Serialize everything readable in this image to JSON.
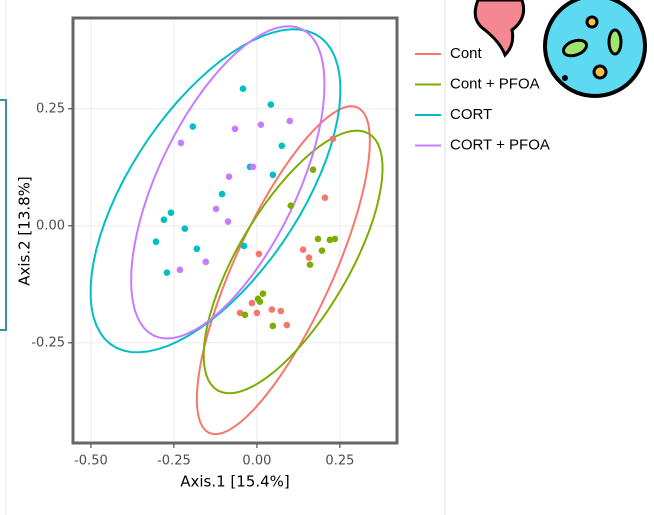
{
  "chart_data": {
    "type": "scatter",
    "x_label": "Axis.1   [15.4%]",
    "y_label": "Axis.2   [13.8%]",
    "xlim": [
      -0.554,
      0.422
    ],
    "ylim": [
      -0.464,
      0.444
    ],
    "xticks": [
      {
        "value": -0.5,
        "label": "-0.50"
      },
      -0.25,
      {
        "value": 0,
        "label": "0.00"
      },
      0.25
    ],
    "yticks": [
      -0.25,
      {
        "value": 0,
        "label": "0.00"
      },
      0.25
    ],
    "grid": true,
    "ellipses": true,
    "legend": "outside-right",
    "series": [
      {
        "name": "Cont",
        "color": "#F8766D",
        "x": [
          0.229,
          0.205,
          0.139,
          0.157,
          0.006,
          -0.015,
          -0.051,
          0,
          0.045,
          0.072,
          0.09
        ],
        "values": [
          0.186,
          0.06,
          -0.051,
          -0.068,
          -0.06,
          -0.165,
          -0.186,
          -0.186,
          -0.179,
          -0.182,
          -0.212
        ]
      },
      {
        "name": "Cont + PFOA",
        "color": "#7CAE00",
        "x": [
          0.169,
          0.102,
          0.184,
          0.22,
          0.235,
          0.196,
          0.16,
          0.018,
          0.003,
          0.009,
          -0.036,
          0.048
        ],
        "values": [
          0.12,
          0.043,
          -0.028,
          -0.03,
          -0.028,
          -0.053,
          -0.083,
          -0.145,
          -0.156,
          -0.162,
          -0.19,
          -0.214
        ]
      },
      {
        "name": "CORT",
        "color": "#00BFC4",
        "x": [
          -0.042,
          0.042,
          -0.193,
          0.075,
          -0.021,
          0.048,
          -0.105,
          -0.259,
          -0.28,
          -0.304,
          -0.217,
          -0.181,
          -0.271,
          -0.039
        ],
        "values": [
          0.293,
          0.259,
          0.212,
          0.171,
          0.126,
          0.109,
          0.068,
          0.028,
          0.013,
          -0.034,
          -0.006,
          -0.049,
          -0.1,
          -0.043
        ]
      },
      {
        "name": "CORT + PFOA",
        "color": "#C77CFF",
        "x": [
          -0.066,
          0.012,
          0.099,
          -0.229,
          -0.084,
          -0.012,
          -0.123,
          -0.087,
          -0.232,
          -0.154
        ],
        "values": [
          0.207,
          0.216,
          0.224,
          0.177,
          0.105,
          0.126,
          0.036,
          0.009,
          -0.094,
          -0.077
        ]
      }
    ]
  }
}
